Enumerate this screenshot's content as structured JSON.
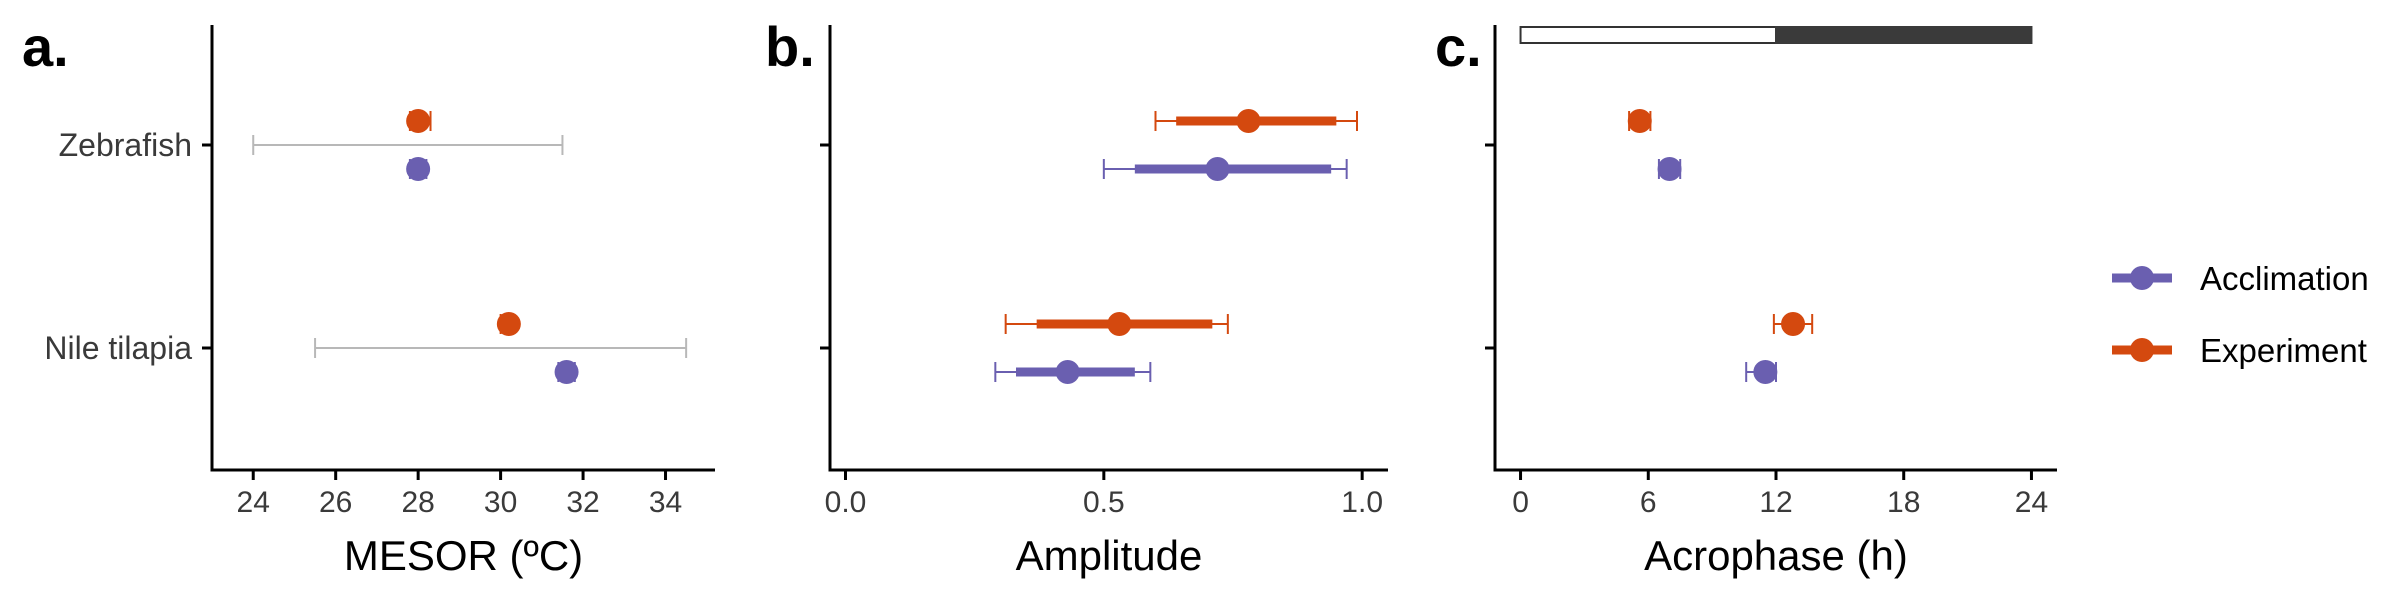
{
  "colors": {
    "acclimation": "#6a5fb0",
    "experiment": "#d4490f",
    "range": "#b8b8b8",
    "dark_bar": "#3a3a3a"
  },
  "categories": [
    "Zebrafish",
    "Nile tilapia"
  ],
  "legend": {
    "placement": "right",
    "items": [
      {
        "label": "Acclimation",
        "color": "#6a5fb0"
      },
      {
        "label": "Experiment",
        "color": "#d4490f"
      }
    ]
  },
  "chart_data": [
    {
      "panel": "a.",
      "type": "scatter",
      "xlabel": "MESOR (ºC)",
      "xlim": [
        23.0,
        35.2
      ],
      "ticks": [
        24,
        26,
        28,
        30,
        32,
        34
      ],
      "tick_labels": [
        "24",
        "26",
        "28",
        "30",
        "32",
        "34"
      ],
      "ranges": [
        {
          "category": "Zebrafish",
          "low": 24.0,
          "high": 31.5
        },
        {
          "category": "Nile tilapia",
          "low": 25.5,
          "high": 34.5
        }
      ],
      "series": [
        {
          "name": "Acclimation",
          "points": [
            {
              "category": "Zebrafish",
              "value": 28.0,
              "low": 27.8,
              "high": 28.2
            },
            {
              "category": "Nile tilapia",
              "value": 31.6,
              "low": 31.4,
              "high": 31.8
            }
          ]
        },
        {
          "name": "Experiment",
          "points": [
            {
              "category": "Zebrafish",
              "value": 28.0,
              "low": 27.8,
              "high": 28.3
            },
            {
              "category": "Nile tilapia",
              "value": 30.2,
              "low": 30.0,
              "high": 30.3
            }
          ]
        }
      ]
    },
    {
      "panel": "b.",
      "type": "scatter",
      "xlabel": "Amplitude",
      "xlim": [
        -0.03,
        1.05
      ],
      "ticks": [
        0.0,
        0.5,
        1.0
      ],
      "tick_labels": [
        "0.0",
        "0.5",
        "1.0"
      ],
      "series": [
        {
          "name": "Acclimation",
          "points": [
            {
              "category": "Zebrafish",
              "value": 0.72,
              "low": 0.5,
              "high": 0.97,
              "low_inner": 0.56,
              "high_inner": 0.94
            },
            {
              "category": "Nile tilapia",
              "value": 0.43,
              "low": 0.29,
              "high": 0.59,
              "low_inner": 0.33,
              "high_inner": 0.56
            }
          ]
        },
        {
          "name": "Experiment",
          "points": [
            {
              "category": "Zebrafish",
              "value": 0.78,
              "low": 0.6,
              "high": 0.99,
              "low_inner": 0.64,
              "high_inner": 0.95
            },
            {
              "category": "Nile tilapia",
              "value": 0.53,
              "low": 0.31,
              "high": 0.74,
              "low_inner": 0.37,
              "high_inner": 0.71
            }
          ]
        }
      ]
    },
    {
      "panel": "c.",
      "type": "scatter",
      "xlabel": "Acrophase (h)",
      "xlim": [
        -1.2,
        25.2
      ],
      "ticks": [
        0,
        6,
        12,
        18,
        24
      ],
      "tick_labels": [
        "0",
        "6",
        "12",
        "18",
        "24"
      ],
      "light_dark_bar": {
        "light": [
          0,
          12
        ],
        "dark": [
          12,
          24
        ]
      },
      "series": [
        {
          "name": "Acclimation",
          "points": [
            {
              "category": "Zebrafish",
              "value": 7.0,
              "low": 6.5,
              "high": 7.5
            },
            {
              "category": "Nile tilapia",
              "value": 11.5,
              "low": 10.6,
              "high": 12.0
            }
          ]
        },
        {
          "name": "Experiment",
          "points": [
            {
              "category": "Zebrafish",
              "value": 5.6,
              "low": 5.1,
              "high": 6.1
            },
            {
              "category": "Nile tilapia",
              "value": 12.8,
              "low": 11.9,
              "high": 13.7
            }
          ]
        }
      ]
    }
  ]
}
